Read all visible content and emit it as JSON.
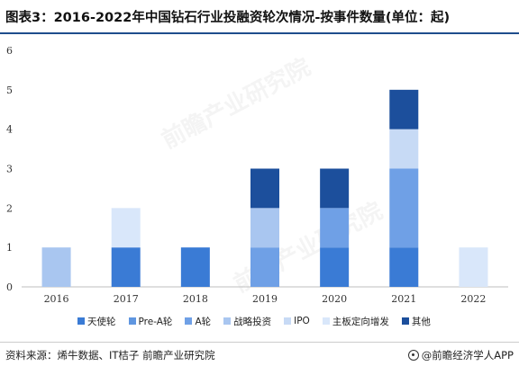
{
  "title": "图表3：2016-2022年中国钻石行业投融资轮次情况-按事件数量(单位：起)",
  "chart_data": {
    "type": "bar",
    "stacked": true,
    "categories": [
      "2016",
      "2017",
      "2018",
      "2019",
      "2020",
      "2021",
      "2022"
    ],
    "series": [
      {
        "name": "天使轮",
        "color": "#3a7bd5",
        "values": [
          0,
          1,
          1,
          0,
          1,
          1,
          0
        ]
      },
      {
        "name": "Pre-A轮",
        "color": "#5f96e0",
        "values": [
          0,
          0,
          0,
          0,
          0,
          0,
          0
        ]
      },
      {
        "name": "A轮",
        "color": "#6fa0e6",
        "values": [
          0,
          0,
          0,
          1,
          1,
          2,
          0
        ]
      },
      {
        "name": "战略投资",
        "color": "#a9c6f0",
        "values": [
          1,
          0,
          0,
          1,
          0,
          0,
          0
        ]
      },
      {
        "name": "IPO",
        "color": "#c7daf5",
        "values": [
          0,
          0,
          0,
          0,
          0,
          1,
          0
        ]
      },
      {
        "name": "主板定向增发",
        "color": "#d9e7fa",
        "values": [
          0,
          1,
          0,
          0,
          0,
          0,
          1
        ]
      },
      {
        "name": "其他",
        "color": "#1c4f9c",
        "values": [
          0,
          0,
          0,
          1,
          1,
          1,
          0
        ]
      }
    ],
    "ylim": [
      0,
      6
    ],
    "yticks": [
      0,
      1,
      2,
      3,
      4,
      5,
      6
    ],
    "grid": false,
    "legend_position": "bottom"
  },
  "footer": {
    "source": "资料来源：烯牛数据、IT桔子 前瞻产业研究院",
    "brand": "@前瞻经济学人APP"
  },
  "watermark_text": "前瞻产业研究院"
}
